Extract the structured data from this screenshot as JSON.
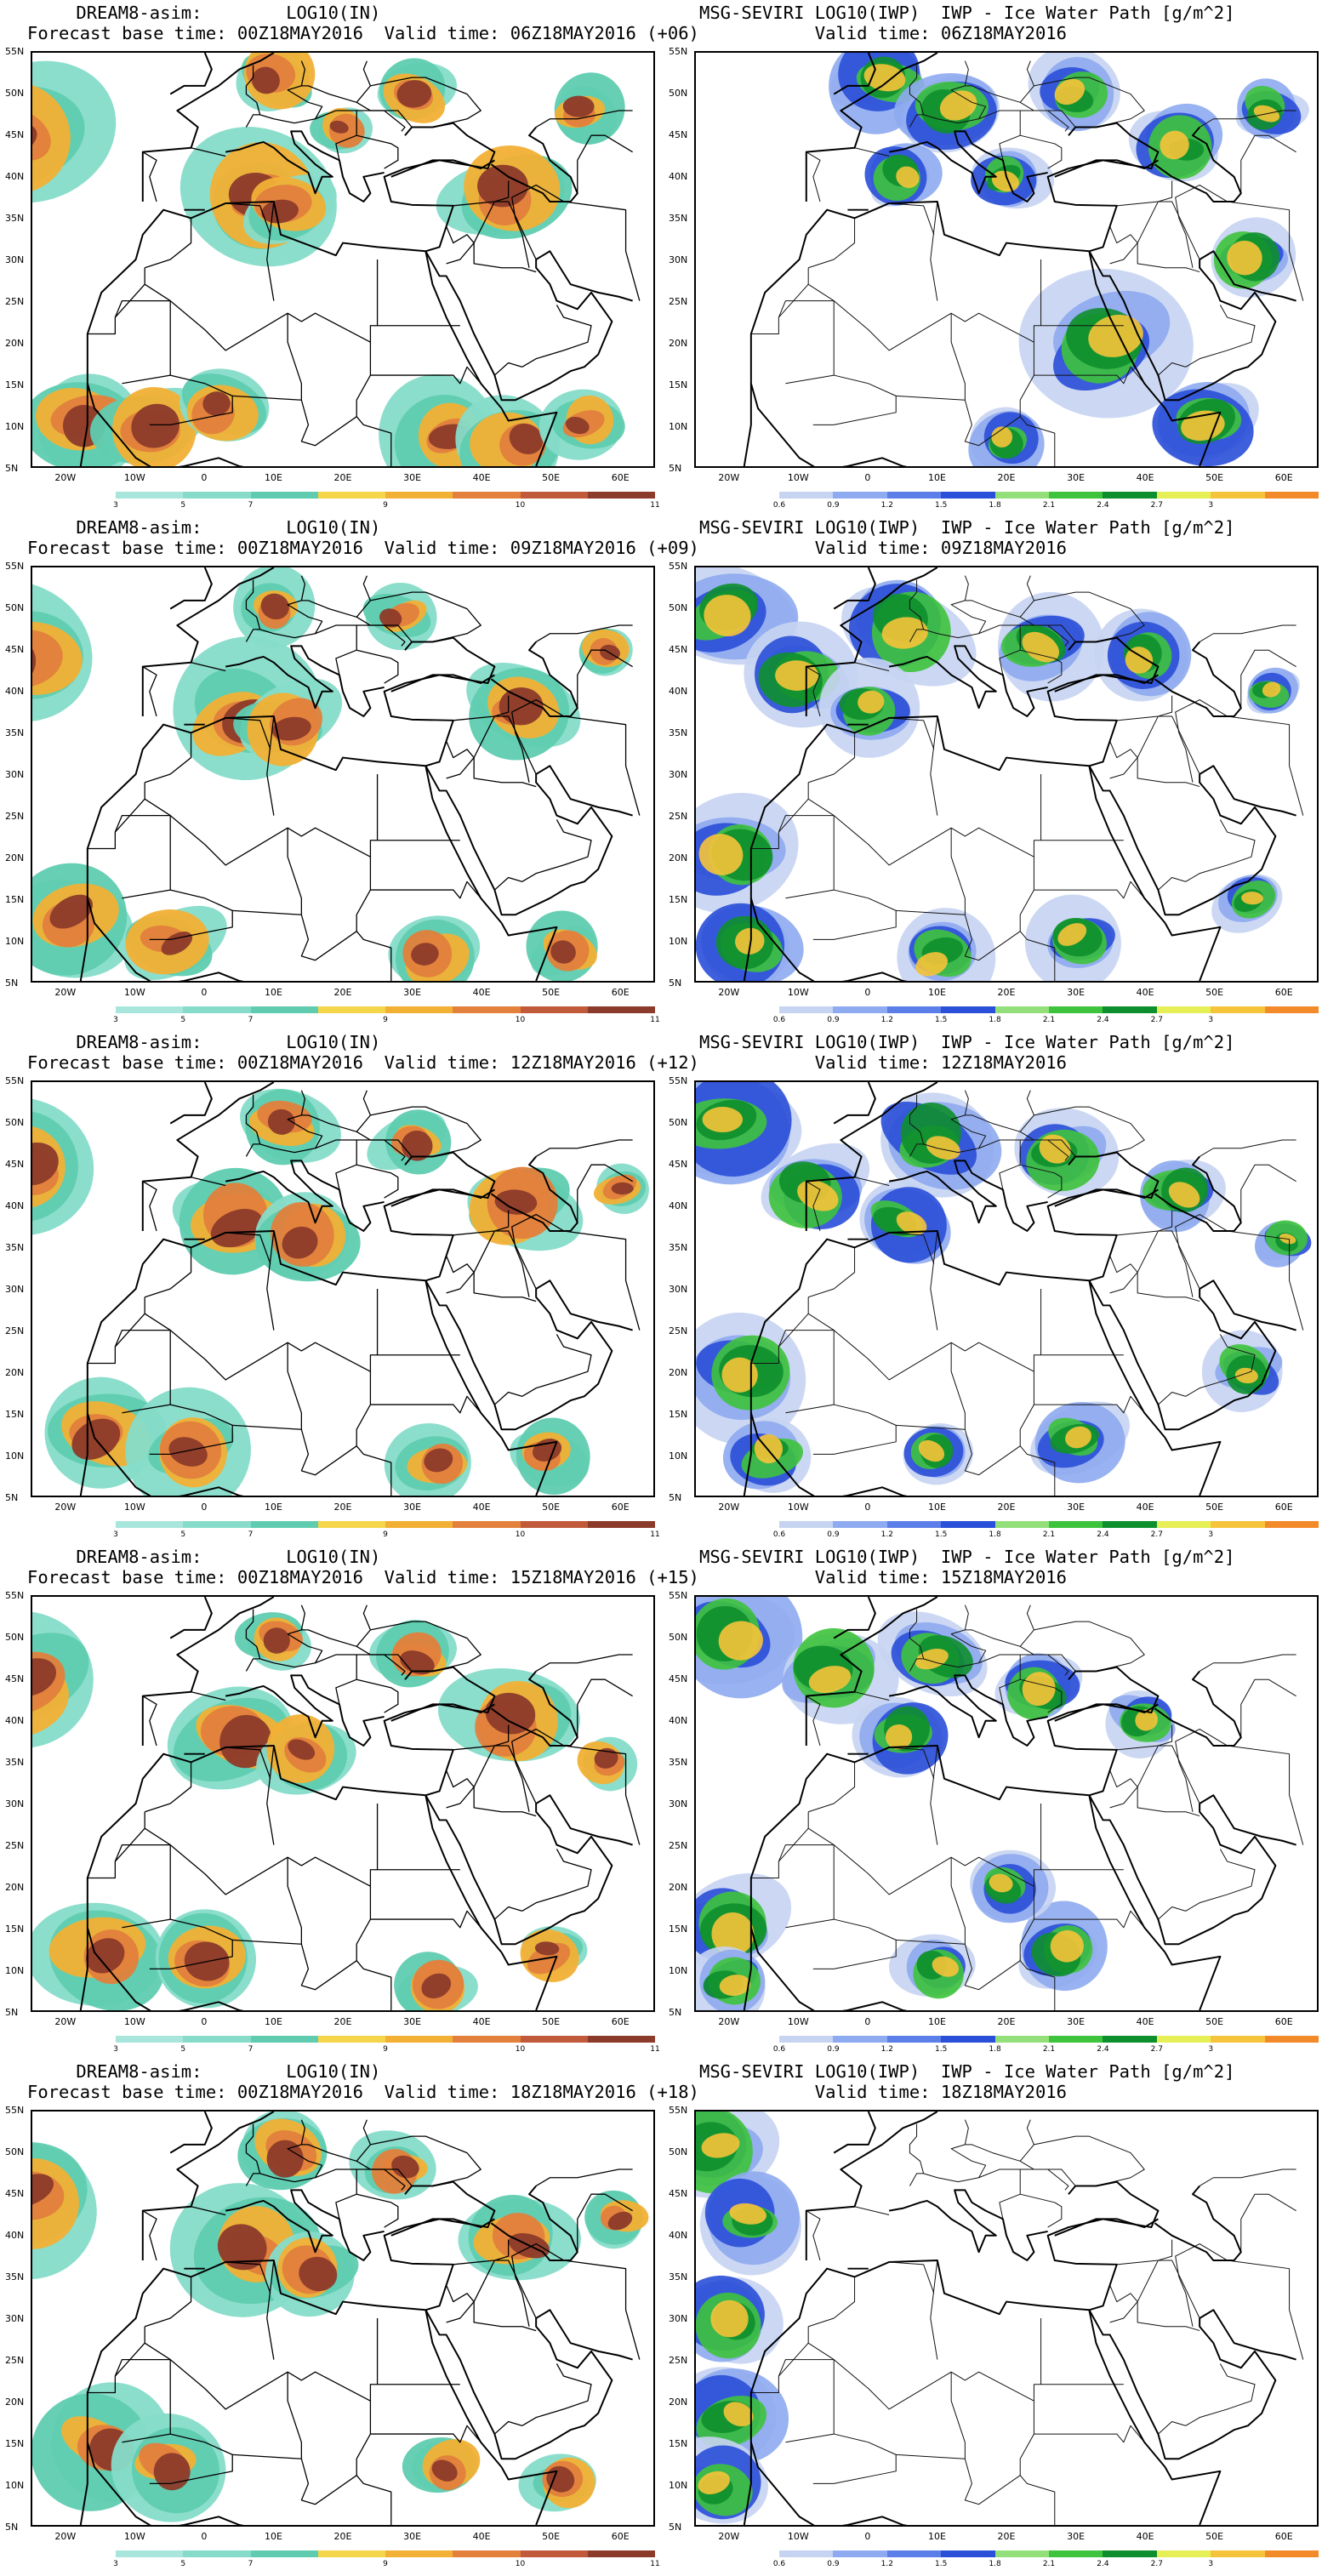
{
  "dream_palette": [
    "#a8e6dc",
    "#86dcc9",
    "#5fccb0",
    "#f5d64a",
    "#f2b035",
    "#e2803c",
    "#c05a3a",
    "#8c3a2a"
  ],
  "seviri_palette": [
    "#c6d4f2",
    "#8eaaf0",
    "#5c7ee8",
    "#2a4fd8",
    "#93e07a",
    "#3ec33c",
    "#0e8f2e",
    "#e6ef55",
    "#f6c43a",
    "#f28a2a"
  ],
  "dream_cbar_labels": [
    "3",
    "5",
    "7",
    "9",
    "10",
    "11"
  ],
  "seviri_cbar_labels": [
    "0.6",
    "0.9",
    "1.2",
    "1.5",
    "1.8",
    "2.1",
    "2.4",
    "2.7",
    "3"
  ],
  "lat_labels": [
    "55N",
    "50N",
    "45N",
    "40N",
    "35N",
    "30N",
    "25N",
    "20N",
    "15N",
    "10N",
    "5N"
  ],
  "lon_labels": [
    "20W",
    "10W",
    "0",
    "10E",
    "20E",
    "30E",
    "40E",
    "50E",
    "60E"
  ],
  "rows": [
    {
      "left_title1": "    DREAM8-asim:        LOG10(IN)",
      "left_title2": "Forecast base time: 00Z18MAY2016  Valid time: 06Z18MAY2016 (+06)",
      "right_title1": "MSG-SEVIRI LOG10(IWP)  IWP - Ice Water Path [g/m^2]",
      "right_title2": "           Valid time: 06Z18MAY2016"
    },
    {
      "left_title1": "    DREAM8-asim:        LOG10(IN)",
      "left_title2": "Forecast base time: 00Z18MAY2016  Valid time: 09Z18MAY2016 (+09)",
      "right_title1": "MSG-SEVIRI LOG10(IWP)  IWP - Ice Water Path [g/m^2]",
      "right_title2": "           Valid time: 09Z18MAY2016"
    },
    {
      "left_title1": "    DREAM8-asim:        LOG10(IN)",
      "left_title2": "Forecast base time: 00Z18MAY2016  Valid time: 12Z18MAY2016 (+12)",
      "right_title1": "MSG-SEVIRI LOG10(IWP)  IWP - Ice Water Path [g/m^2]",
      "right_title2": "           Valid time: 12Z18MAY2016"
    },
    {
      "left_title1": "    DREAM8-asim:        LOG10(IN)",
      "left_title2": "Forecast base time: 00Z18MAY2016  Valid time: 15Z18MAY2016 (+15)",
      "right_title1": "MSG-SEVIRI LOG10(IWP)  IWP - Ice Water Path [g/m^2]",
      "right_title2": "           Valid time: 15Z18MAY2016"
    },
    {
      "left_title1": "    DREAM8-asim:        LOG10(IN)",
      "left_title2": "Forecast base time: 00Z18MAY2016  Valid time: 18Z18MAY2016 (+18)",
      "right_title1": "MSG-SEVIRI LOG10(IWP)  IWP - Ice Water Path [g/m^2]",
      "right_title2": "           Valid time: 18Z18MAY2016"
    }
  ]
}
